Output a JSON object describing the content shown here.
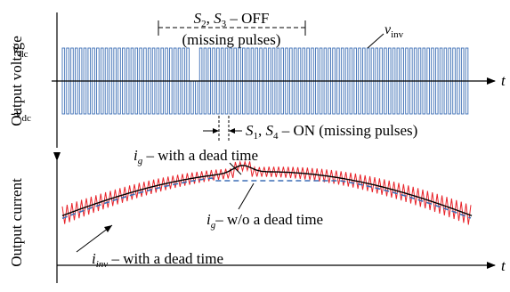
{
  "top_panel": {
    "y_axis_label": "Output voltage",
    "x_axis_label": "t",
    "tick_pos_label": "v",
    "tick_pos_sub": "dc",
    "tick_neg_label": "-v",
    "tick_neg_sub": "dc",
    "signal_label": "v",
    "signal_sub": "inv",
    "annotation_off": {
      "s2": "S",
      "s2_sub": "2",
      "sep": ", ",
      "s3": "S",
      "s3_sub": "3",
      "text": " – OFF",
      "line2": "(missing pulses)"
    },
    "annotation_on": {
      "s1": "S",
      "s1_sub": "1",
      "sep": ", ",
      "s4": "S",
      "s4_sub": "4",
      "text": " – ON (missing pulses)"
    },
    "pulse_count": 95,
    "missing_pulse_gap": {
      "start_fraction": 0.31,
      "end_fraction": 0.335
    },
    "colors": {
      "pulse": "#3d6fb5",
      "axis": "#000000"
    }
  },
  "bottom_panel": {
    "y_axis_label": "Output current",
    "x_axis_label": "t",
    "label_ig_dead": {
      "i": "i",
      "sub": "g",
      "text": " – with a dead time"
    },
    "label_ig_nodead": {
      "i": "i",
      "sub": "g",
      "text": "– w/o a dead time"
    },
    "label_iinv": {
      "i": "i",
      "sub": "inv",
      "text": " – with a dead time"
    },
    "colors": {
      "iinv": "#e8232a",
      "ig_dead": "#000000",
      "ig_nodead": "#3d6fb5"
    }
  }
}
